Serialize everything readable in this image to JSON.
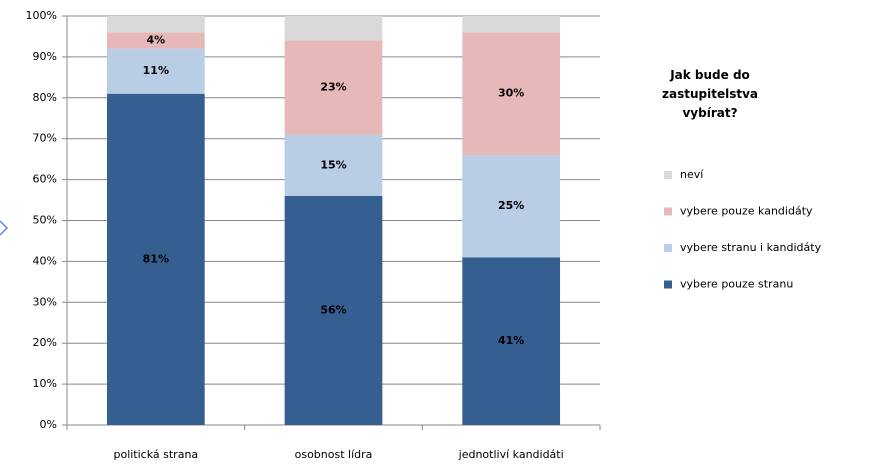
{
  "chart_data": {
    "type": "stacked_bar",
    "categories": [
      "politická strana",
      "osobnost lídra",
      "jednotliví kandidáti"
    ],
    "series": [
      {
        "name": "vybere pouze stranu",
        "color": "#365f91",
        "label_color": "#ffffff",
        "values": [
          81,
          56,
          41
        ],
        "value_labels": [
          "81%",
          "56%",
          "41%"
        ]
      },
      {
        "name": "vybere stranu i kandidáty",
        "color": "#b9cde5",
        "label_color": "#000000",
        "values": [
          11,
          15,
          25
        ],
        "value_labels": [
          "11%",
          "15%",
          "25%"
        ]
      },
      {
        "name": "vybere pouze kandidáty",
        "color": "#e6b9b8",
        "label_color": "#000000",
        "values": [
          4,
          23,
          30
        ],
        "value_labels": [
          "4%",
          "23%",
          "30%"
        ]
      },
      {
        "name": "neví",
        "color": "#d9d9d9",
        "values": [
          4,
          6,
          4
        ]
      }
    ],
    "ylim": [
      0,
      100
    ],
    "yticks": [
      {
        "value": 0,
        "label": "0%"
      },
      {
        "value": 10,
        "label": "10%"
      },
      {
        "value": 20,
        "label": "20%"
      },
      {
        "value": 30,
        "label": "30%"
      },
      {
        "value": 40,
        "label": "40%"
      },
      {
        "value": 50,
        "label": "50%"
      },
      {
        "value": 60,
        "label": "60%"
      },
      {
        "value": 70,
        "label": "70%"
      },
      {
        "value": 80,
        "label": "80%"
      },
      {
        "value": 90,
        "label": "90%"
      },
      {
        "value": 100,
        "label": "100%"
      }
    ],
    "grid": true,
    "legend_title": "Jak bude do zastupitelstva vybírat?",
    "legend_position": "right"
  }
}
